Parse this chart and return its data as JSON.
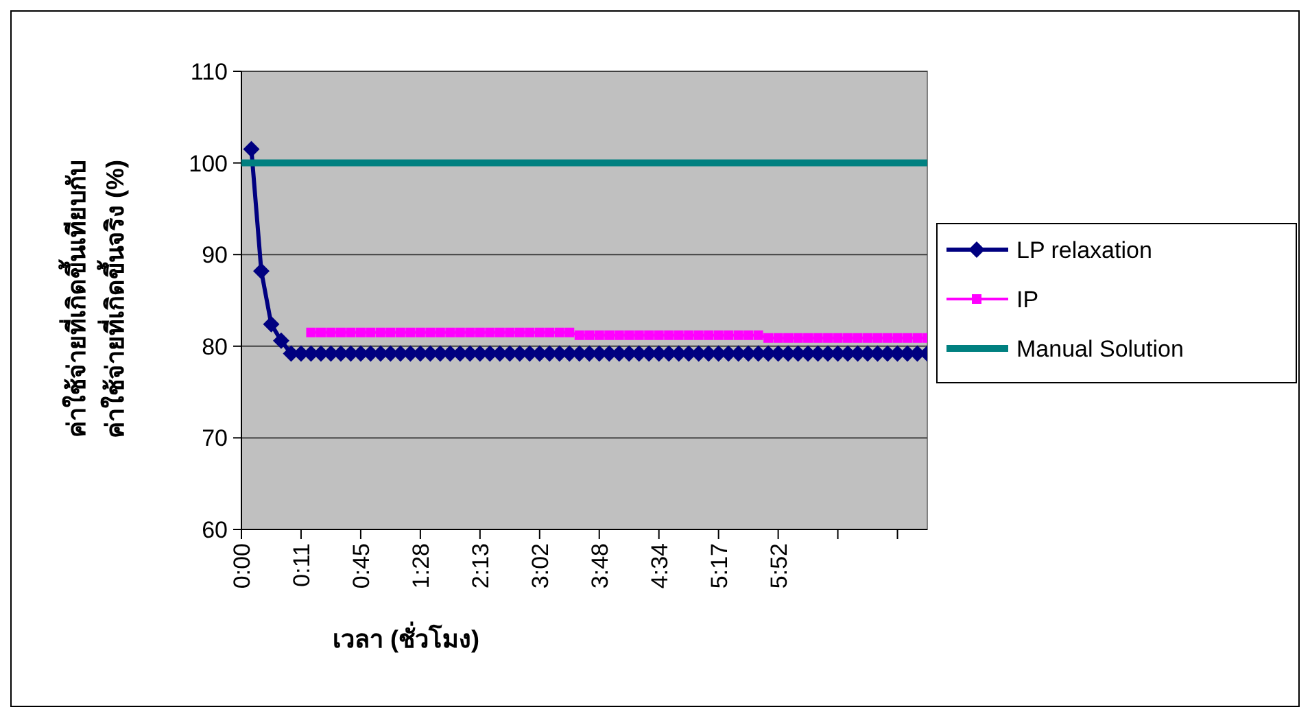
{
  "chart_data": {
    "type": "line",
    "xlabel": "เวลา (ชั่วโมง)",
    "ylabel": "ค่าใช้จ่ายที่เกิดขึ้นเทียบกับ\nค่าใช้จ่ายที่เกิดขึ้นจริง (%)",
    "categories": [
      "0:00",
      null,
      null,
      null,
      null,
      null,
      "0:11",
      null,
      null,
      null,
      null,
      null,
      "0:45",
      null,
      null,
      null,
      null,
      null,
      "1:28",
      null,
      null,
      null,
      null,
      null,
      "2:13",
      null,
      null,
      null,
      null,
      null,
      "3:02",
      null,
      null,
      null,
      null,
      null,
      "3:48",
      null,
      null,
      null,
      null,
      null,
      "4:34",
      null,
      null,
      null,
      null,
      null,
      "5:17",
      null,
      null,
      null,
      null,
      null,
      "5:52",
      null,
      null,
      null,
      null,
      null,
      null,
      null,
      null,
      null,
      null,
      null,
      null,
      null,
      null,
      null
    ],
    "ylim": [
      60,
      110
    ],
    "yticks": [
      60,
      70,
      80,
      90,
      100,
      110
    ],
    "grid": "y",
    "legend": "right",
    "series": [
      {
        "name": "LP relaxation",
        "color": "#000080",
        "marker": "diamond",
        "values": [
          null,
          101.5,
          88.2,
          82.4,
          80.6,
          79.2,
          79.2,
          79.2,
          79.2,
          79.2,
          79.2,
          79.2,
          79.2,
          79.2,
          79.2,
          79.2,
          79.2,
          79.2,
          79.2,
          79.2,
          79.2,
          79.2,
          79.2,
          79.2,
          79.2,
          79.2,
          79.2,
          79.2,
          79.2,
          79.2,
          79.2,
          79.2,
          79.2,
          79.2,
          79.2,
          79.2,
          79.2,
          79.2,
          79.2,
          79.2,
          79.2,
          79.2,
          79.2,
          79.2,
          79.2,
          79.2,
          79.2,
          79.2,
          79.2,
          79.2,
          79.2,
          79.2,
          79.2,
          79.2,
          79.2,
          79.2,
          79.2,
          79.2,
          79.2,
          79.2,
          79.2,
          79.2,
          79.2,
          79.2,
          79.2,
          79.2,
          79.2,
          79.2,
          79.2,
          79.2
        ]
      },
      {
        "name": "IP",
        "color": "#ff00ff",
        "marker": "square",
        "values": [
          null,
          null,
          null,
          null,
          null,
          null,
          null,
          81.5,
          81.5,
          81.5,
          81.5,
          81.5,
          81.5,
          81.5,
          81.5,
          81.5,
          81.5,
          81.5,
          81.5,
          81.5,
          81.5,
          81.5,
          81.5,
          81.5,
          81.5,
          81.5,
          81.5,
          81.5,
          81.5,
          81.5,
          81.5,
          81.5,
          81.5,
          81.5,
          81.2,
          81.2,
          81.2,
          81.2,
          81.2,
          81.2,
          81.2,
          81.2,
          81.2,
          81.2,
          81.2,
          81.2,
          81.2,
          81.2,
          81.2,
          81.2,
          81.2,
          81.2,
          81.2,
          80.9,
          80.9,
          80.9,
          80.9,
          80.9,
          80.9,
          80.9,
          80.9,
          80.9,
          80.9,
          80.9,
          80.9,
          80.9,
          80.9,
          80.9,
          80.9,
          80.9
        ]
      },
      {
        "name": "Manual Solution",
        "color": "#008080",
        "marker": "none",
        "values": [
          100,
          100,
          100,
          100,
          100,
          100,
          100,
          100,
          100,
          100,
          100,
          100,
          100,
          100,
          100,
          100,
          100,
          100,
          100,
          100,
          100,
          100,
          100,
          100,
          100,
          100,
          100,
          100,
          100,
          100,
          100,
          100,
          100,
          100,
          100,
          100,
          100,
          100,
          100,
          100,
          100,
          100,
          100,
          100,
          100,
          100,
          100,
          100,
          100,
          100,
          100,
          100,
          100,
          100,
          100,
          100,
          100,
          100,
          100,
          100,
          100,
          100,
          100,
          100,
          100,
          100,
          100,
          100,
          100,
          100
        ]
      }
    ]
  }
}
